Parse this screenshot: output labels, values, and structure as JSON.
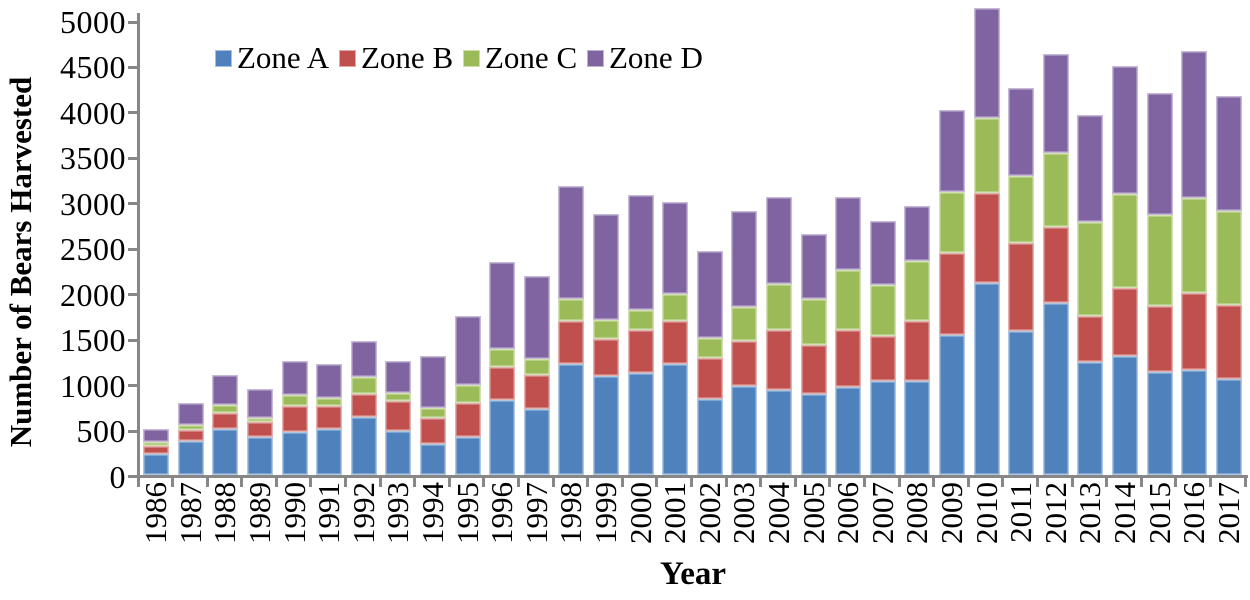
{
  "chart_data": {
    "type": "bar",
    "stacked": true,
    "title": "",
    "xlabel": "Year",
    "ylabel": "Number of Bears Harvested",
    "ylim": [
      0,
      5000
    ],
    "ytick_step": 500,
    "grid": false,
    "legend_position": "top",
    "axis_color": "#878787",
    "categories": [
      "1986",
      "1987",
      "1988",
      "1989",
      "1990",
      "1991",
      "1992",
      "1993",
      "1994",
      "1995",
      "1996",
      "1997",
      "1998",
      "1999",
      "2000",
      "2001",
      "2002",
      "2003",
      "2004",
      "2005",
      "2006",
      "2007",
      "2008",
      "2009",
      "2010",
      "2011",
      "2012",
      "2013",
      "2014",
      "2015",
      "2016",
      "2017"
    ],
    "series": [
      {
        "name": "Zone A",
        "color": "#4F81BD",
        "values": [
          230,
          375,
          510,
          420,
          475,
          505,
          640,
          485,
          345,
          420,
          820,
          730,
          1220,
          1090,
          1125,
          1220,
          840,
          980,
          935,
          890,
          970,
          1030,
          1030,
          1540,
          2115,
          1585,
          1895,
          1245,
          1310,
          1135,
          1155,
          1055
        ]
      },
      {
        "name": "Zone B",
        "color": "#C0504D",
        "values": [
          90,
          120,
          175,
          165,
          285,
          255,
          250,
          325,
          285,
          370,
          370,
          365,
          470,
          410,
          475,
          470,
          450,
          490,
          665,
          540,
          630,
          500,
          660,
          905,
          990,
          970,
          835,
          505,
          745,
          725,
          845,
          815
        ]
      },
      {
        "name": "Zone C",
        "color": "#9BBB59",
        "values": [
          45,
          50,
          90,
          45,
          115,
          90,
          190,
          95,
          110,
          195,
          195,
          185,
          245,
          210,
          220,
          305,
          220,
          375,
          505,
          510,
          650,
          565,
          660,
          665,
          825,
          735,
          815,
          1035,
          1040,
          1005,
          1045,
          1035
        ]
      },
      {
        "name": "Zone D",
        "color": "#8064A2",
        "values": [
          140,
          245,
          325,
          320,
          375,
          375,
          395,
          345,
          570,
          765,
          955,
          910,
          1245,
          1160,
          1260,
          1005,
          960,
          1055,
          950,
          710,
          810,
          705,
          610,
          910,
          1210,
          970,
          1085,
          1175,
          1405,
          1335,
          1615,
          1265
        ]
      }
    ]
  }
}
